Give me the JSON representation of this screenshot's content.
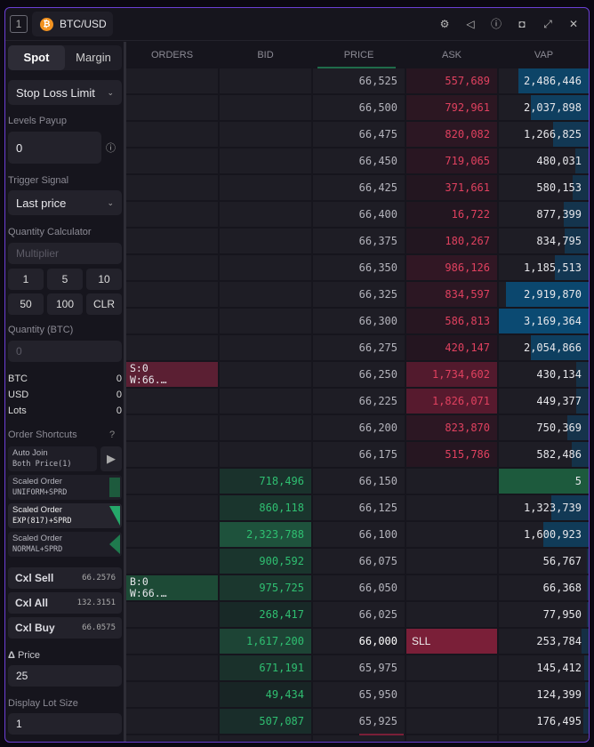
{
  "header": {
    "window_number": "1",
    "symbol": "BTC/USD",
    "coin_icon": "bitcoin-icon",
    "icons": [
      "gear-icon",
      "sound-icon",
      "info-panel-icon",
      "camera-icon",
      "expand-icon",
      "close-icon"
    ]
  },
  "left": {
    "tabs": [
      "Spot",
      "Margin"
    ],
    "active_tab": "Spot",
    "order_type": "Stop Loss Limit",
    "levels_payup_label": "Levels Payup",
    "levels_payup_value": "0",
    "trigger_label": "Trigger Signal",
    "trigger_value": "Last price",
    "qty_calc_label": "Quantity Calculator",
    "multiplier_placeholder": "Multiplier",
    "calc_buttons": [
      "1",
      "5",
      "10",
      "50",
      "100",
      "CLR"
    ],
    "qty_label": "Quantity (BTC)",
    "qty_placeholder": "0",
    "balances": [
      {
        "k": "BTC",
        "v": "0"
      },
      {
        "k": "USD",
        "v": "0"
      },
      {
        "k": "Lots",
        "v": "0"
      }
    ],
    "shortcuts_label": "Order Shortcuts",
    "auto_join": {
      "l1": "Auto Join",
      "l2": "Both Price(1)"
    },
    "scaled": [
      {
        "l1": "Scaled Order",
        "l2": "UNIFORM+SPRD"
      },
      {
        "l1": "Scaled Order",
        "l2": "EXP(817)+SPRD"
      },
      {
        "l1": "Scaled Order",
        "l2": "NORMAL+SPRD"
      }
    ],
    "cancel": [
      {
        "label": "Cxl Sell",
        "value": "66.2576"
      },
      {
        "label": "Cxl All",
        "value": "132.3151"
      },
      {
        "label": "Cxl Buy",
        "value": "66.0575"
      }
    ],
    "price_label": "Price",
    "price_value": "25",
    "lot_label": "Display Lot Size",
    "lot_value": "1"
  },
  "table": {
    "columns": [
      "ORDERS",
      "BID",
      "PRICE",
      "ASK",
      "VAP"
    ],
    "colors": {
      "ask": "#e0415f",
      "bid": "#2fbf71",
      "vap": "#0b4a72"
    },
    "rows": [
      {
        "price": "66,525",
        "ask": "557,689",
        "vap": "2,486,446"
      },
      {
        "price": "66,500",
        "ask": "792,961",
        "vap": "2,037,898"
      },
      {
        "price": "66,475",
        "ask": "820,082",
        "vap": "1,266,825"
      },
      {
        "price": "66,450",
        "ask": "719,065",
        "vap": "480,031"
      },
      {
        "price": "66,425",
        "ask": "371,661",
        "vap": "580,153"
      },
      {
        "price": "66,400",
        "ask": "16,722",
        "vap": "877,399"
      },
      {
        "price": "66,375",
        "ask": "180,267",
        "vap": "834,795"
      },
      {
        "price": "66,350",
        "ask": "986,126",
        "vap": "1,185,513"
      },
      {
        "price": "66,325",
        "ask": "834,597",
        "vap": "2,919,870"
      },
      {
        "price": "66,300",
        "ask": "586,813",
        "vap": "3,169,364"
      },
      {
        "price": "66,275",
        "ask": "420,147",
        "vap": "2,054,866"
      },
      {
        "price": "66,250",
        "ask": "1,734,602",
        "vap": "430,134",
        "order": {
          "side": "sell",
          "l1": "S:0",
          "l2": "W:66.…"
        }
      },
      {
        "price": "66,225",
        "ask": "1,826,071",
        "vap": "449,377"
      },
      {
        "price": "66,200",
        "ask": "823,870",
        "vap": "750,369"
      },
      {
        "price": "66,175",
        "ask": "515,786",
        "vap": "582,486"
      },
      {
        "price": "66,150",
        "bid": "718,496",
        "vap": "5"
      },
      {
        "price": "66,125",
        "bid": "860,118",
        "vap": "1,323,739"
      },
      {
        "price": "66,100",
        "bid": "2,323,788",
        "vap": "1,600,923"
      },
      {
        "price": "66,075",
        "bid": "900,592",
        "vap": "56,767"
      },
      {
        "price": "66,050",
        "bid": "975,725",
        "vap": "66,368",
        "order": {
          "side": "buy",
          "l1": "B:0",
          "l2": "W:66.…"
        }
      },
      {
        "price": "66,025",
        "bid": "268,417",
        "vap": "77,950"
      },
      {
        "price": "66,000",
        "bid": "1,617,200",
        "ask": "SLL",
        "vap": "253,784",
        "last": true
      },
      {
        "price": "65,975",
        "bid": "671,191",
        "vap": "145,412"
      },
      {
        "price": "65,950",
        "bid": "49,434",
        "vap": "124,399"
      },
      {
        "price": "65,925",
        "bid": "507,087",
        "vap": "176,495"
      }
    ]
  }
}
